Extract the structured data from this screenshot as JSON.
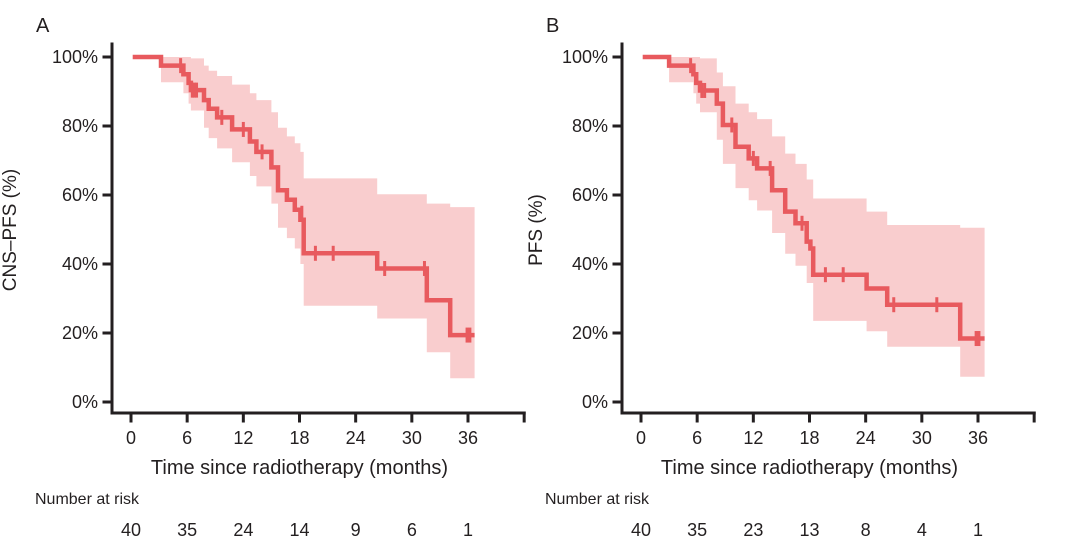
{
  "figure": {
    "background": "#ffffff",
    "colors": {
      "curve": "#e85a5e",
      "band": "#f9cdce",
      "axis": "#231f20",
      "text": "#231f20"
    }
  },
  "chart_data": [
    {
      "type": "line",
      "subtype": "kaplan-meier-step",
      "panel_label": "A",
      "ylabel": "CNS–PFS (%)",
      "xlabel": "Time since radiotherapy (months)",
      "x_ticks": [
        0,
        6,
        12,
        18,
        24,
        30,
        36
      ],
      "x_axis_end_tick": 42,
      "y_ticks": [
        {
          "value": 100,
          "label": "100%"
        },
        {
          "value": 80,
          "label": "80%"
        },
        {
          "value": 60,
          "label": "60%"
        },
        {
          "value": 40,
          "label": "40%"
        },
        {
          "value": 20,
          "label": "20%"
        },
        {
          "value": 0,
          "label": "0%"
        }
      ],
      "xlim": [
        0,
        42
      ],
      "ylim": [
        0,
        100
      ],
      "x_end": 36.7,
      "km_steps": [
        [
          0,
          100
        ],
        [
          3.2,
          97.5
        ],
        [
          5.6,
          95.0
        ],
        [
          6.15,
          92.5
        ],
        [
          6.4,
          90.4
        ],
        [
          7.8,
          87.5
        ],
        [
          8.3,
          85.0
        ],
        [
          9.2,
          82.5
        ],
        [
          10.8,
          79.0
        ],
        [
          12.7,
          75.5
        ],
        [
          13.4,
          72.5
        ],
        [
          15.0,
          68.0
        ],
        [
          15.7,
          61.4
        ],
        [
          16.65,
          58.6
        ],
        [
          17.5,
          55.7
        ],
        [
          18.1,
          52.8
        ],
        [
          18.45,
          43.1
        ],
        [
          26.3,
          38.7
        ],
        [
          31.6,
          29.5
        ],
        [
          34.1,
          19.4
        ]
      ],
      "censor_marks": [
        [
          5.3,
          97.5
        ],
        [
          6.55,
          90.4
        ],
        [
          6.75,
          90.4
        ],
        [
          7.0,
          90.4
        ],
        [
          9.7,
          82.5
        ],
        [
          12.0,
          79.0
        ],
        [
          14.0,
          72.5
        ],
        [
          18.25,
          54.7
        ],
        [
          19.7,
          43.1
        ],
        [
          21.6,
          43.1
        ],
        [
          27.1,
          38.7
        ],
        [
          31.35,
          38.7
        ],
        [
          35.9,
          19.4
        ],
        [
          36.2,
          19.4
        ]
      ],
      "ci_band": [
        [
          3.2,
          92.7,
          100
        ],
        [
          5.6,
          89.5,
          100
        ],
        [
          6.15,
          86.5,
          100
        ],
        [
          6.4,
          84.5,
          99.6
        ],
        [
          7.8,
          79.5,
          97.5
        ],
        [
          8.3,
          76.5,
          96.0
        ],
        [
          9.2,
          73.5,
          94.5
        ],
        [
          10.8,
          69.5,
          92.0
        ],
        [
          12.7,
          65.5,
          89.5
        ],
        [
          13.4,
          62.5,
          87.5
        ],
        [
          15.0,
          57.5,
          84.0
        ],
        [
          15.7,
          50.5,
          79.5
        ],
        [
          16.65,
          47.5,
          77.0
        ],
        [
          17.5,
          44.5,
          75.0
        ],
        [
          18.1,
          40.0,
          72.5
        ],
        [
          18.45,
          27.9,
          64.8
        ],
        [
          26.3,
          24.2,
          60.2
        ],
        [
          31.6,
          14.4,
          57.5
        ],
        [
          34.1,
          6.9,
          56.5
        ]
      ],
      "risk_label": "Number at risk",
      "risk_times": [
        0,
        6,
        12,
        18,
        24,
        30,
        36
      ],
      "risk_counts": [
        "40",
        "35",
        "24",
        "14",
        "9",
        "6",
        "1"
      ]
    },
    {
      "type": "line",
      "subtype": "kaplan-meier-step",
      "panel_label": "B",
      "ylabel": "PFS (%)",
      "xlabel": "Time since radiotherapy (months)",
      "x_ticks": [
        0,
        6,
        12,
        18,
        24,
        30,
        36
      ],
      "x_axis_end_tick": 42,
      "y_ticks": [
        {
          "value": 100,
          "label": "100%"
        },
        {
          "value": 80,
          "label": "80%"
        },
        {
          "value": 60,
          "label": "60%"
        },
        {
          "value": 40,
          "label": "40%"
        },
        {
          "value": 20,
          "label": "20%"
        },
        {
          "value": 0,
          "label": "0%"
        }
      ],
      "xlim": [
        0,
        42
      ],
      "ylim": [
        0,
        100
      ],
      "x_end": 36.7,
      "km_steps": [
        [
          0,
          100
        ],
        [
          3.0,
          97.5
        ],
        [
          5.6,
          95.0
        ],
        [
          5.9,
          92.5
        ],
        [
          6.3,
          90.3
        ],
        [
          8.1,
          86.5
        ],
        [
          8.75,
          80.3
        ],
        [
          10.1,
          74.0
        ],
        [
          11.5,
          70.6
        ],
        [
          12.4,
          67.7
        ],
        [
          14.0,
          61.4
        ],
        [
          15.4,
          55.2
        ],
        [
          16.5,
          51.8
        ],
        [
          17.7,
          46.5
        ],
        [
          18.1,
          44.5
        ],
        [
          18.4,
          36.9
        ],
        [
          24.1,
          32.9
        ],
        [
          26.3,
          28.2
        ],
        [
          34.1,
          18.4
        ]
      ],
      "censor_marks": [
        [
          5.3,
          97.5
        ],
        [
          6.5,
          90.3
        ],
        [
          6.8,
          90.3
        ],
        [
          9.7,
          80.3
        ],
        [
          12.0,
          70.6
        ],
        [
          13.8,
          67.7
        ],
        [
          17.2,
          51.8
        ],
        [
          19.7,
          36.9
        ],
        [
          21.6,
          36.9
        ],
        [
          27.0,
          28.2
        ],
        [
          31.6,
          28.2
        ],
        [
          35.8,
          18.4
        ],
        [
          36.1,
          18.4
        ]
      ],
      "ci_band": [
        [
          3.0,
          92.7,
          100
        ],
        [
          5.6,
          89.5,
          100
        ],
        [
          5.9,
          86.5,
          100
        ],
        [
          6.3,
          84.0,
          99.6
        ],
        [
          8.1,
          76.0,
          95.5
        ],
        [
          8.75,
          69.0,
          91.5
        ],
        [
          10.1,
          62.0,
          86.5
        ],
        [
          11.5,
          58.5,
          84.0
        ],
        [
          12.4,
          55.5,
          82.0
        ],
        [
          14.0,
          49.0,
          77.0
        ],
        [
          15.4,
          43.0,
          72.0
        ],
        [
          16.5,
          39.5,
          69.0
        ],
        [
          17.7,
          34.5,
          64.5
        ],
        [
          18.4,
          23.5,
          59.0
        ],
        [
          24.1,
          20.5,
          55.2
        ],
        [
          26.3,
          16.0,
          51.3
        ],
        [
          34.1,
          7.3,
          50.5
        ]
      ],
      "risk_label": "Number at risk",
      "risk_times": [
        0,
        6,
        12,
        18,
        24,
        30,
        36
      ],
      "risk_counts": [
        "40",
        "35",
        "23",
        "13",
        "8",
        "4",
        "1"
      ]
    }
  ]
}
